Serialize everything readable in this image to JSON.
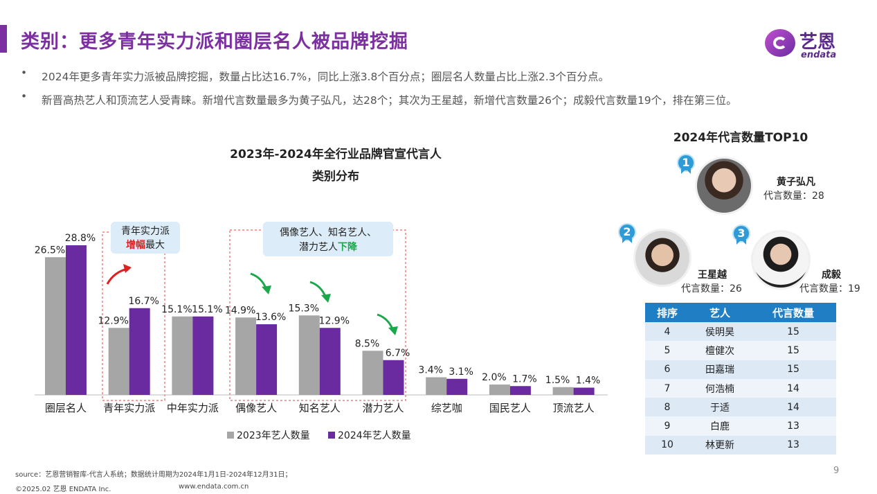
{
  "header": {
    "title": "类别：更多青年实力派和圈层名人被品牌挖掘",
    "logo_cn": "艺恩",
    "logo_en": "endata"
  },
  "bullets": [
    "2024年更多青年实力派被品牌挖掘，数量占比达16.7%，同比上涨3.8个百分点；圈层名人数量占比上涨2.3个百分点。",
    "新晋高热艺人和顶流艺人受青睐。新增代言数量最多为黄子弘凡，达28个；其次为王星越，新增代言数量26个；成毅代言数量19个，排在第三位。"
  ],
  "chart_data": {
    "type": "bar",
    "title": "2023年-2024年全行业品牌官宣代言人",
    "subtitle": "类别分布",
    "categories": [
      "圈层名人",
      "青年实力派",
      "中年实力派",
      "偶像艺人",
      "知名艺人",
      "潜力艺人",
      "综艺咖",
      "国民艺人",
      "顶流艺人"
    ],
    "series": [
      {
        "name": "2023年艺人数量",
        "values": [
          26.5,
          12.9,
          15.1,
          14.9,
          15.3,
          8.5,
          3.4,
          2.0,
          1.5
        ],
        "labels": [
          "26.5%",
          "12.9%",
          "15.1%",
          "14.9%",
          "15.3%",
          "8.5%",
          "3.4%",
          "2.0%",
          "1.5%"
        ]
      },
      {
        "name": "2024年艺人数量",
        "values": [
          28.8,
          16.7,
          15.1,
          13.6,
          12.9,
          6.7,
          3.1,
          1.7,
          1.4
        ],
        "labels": [
          "28.8%",
          "16.7%",
          "15.1%",
          "13.6%",
          "12.9%",
          "6.7%",
          "3.1%",
          "1.7%",
          "1.4%"
        ]
      }
    ],
    "ylim": [
      0,
      30
    ],
    "grid": false,
    "legend_position": "bottom",
    "colors": {
      "s2023": "#a6a6a6",
      "s2024": "#6a2aa0"
    },
    "annotations": {
      "callout_rise_line1": "青年实力派",
      "callout_rise_highlight": "增幅",
      "callout_rise_rest": "最大",
      "callout_fall_line1": "偶像艺人、知名艺人、",
      "callout_fall_line2_pre": "潜力艺人",
      "callout_fall_highlight": "下降"
    }
  },
  "top10": {
    "title": "2024年代言数量TOP10",
    "count_prefix": "代言数量：",
    "podium": [
      {
        "rank": "1",
        "name": "黄子弘凡",
        "count": "28"
      },
      {
        "rank": "2",
        "name": "王星越",
        "count": "26"
      },
      {
        "rank": "3",
        "name": "成毅",
        "count": "19"
      }
    ],
    "table": {
      "headers": [
        "排序",
        "艺人",
        "代言数量"
      ],
      "rows": [
        [
          "4",
          "侯明昊",
          "15"
        ],
        [
          "5",
          "檀健次",
          "15"
        ],
        [
          "6",
          "田嘉瑞",
          "15"
        ],
        [
          "7",
          "何浩楠",
          "14"
        ],
        [
          "8",
          "于适",
          "14"
        ],
        [
          "9",
          "白鹿",
          "13"
        ],
        [
          "10",
          "林更新",
          "13"
        ]
      ]
    }
  },
  "footer": {
    "source": "source：艺恩营销智库-代言人系统；数据统计周期为2024年1月1日-2024年12月31日；",
    "copyright": "©2025.02 艺恩 ENDATA Inc.",
    "website": "www.endata.com.cn",
    "page_number": "9"
  }
}
